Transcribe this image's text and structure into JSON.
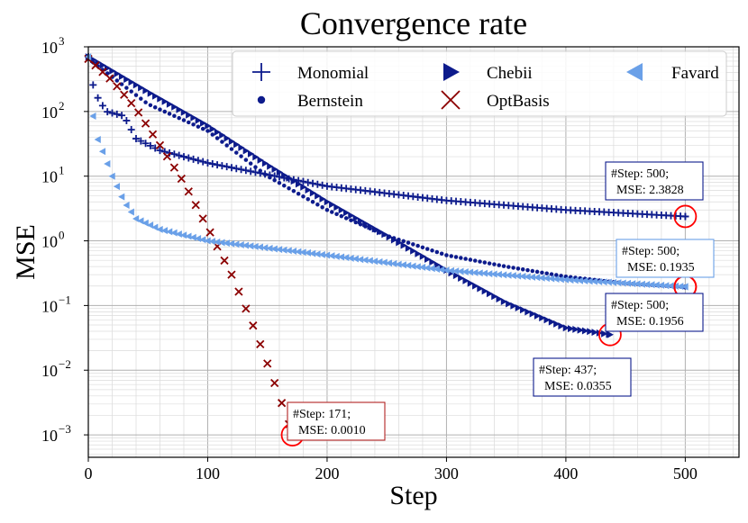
{
  "chart_data": {
    "type": "scatter",
    "title": "Convergence rate",
    "xlabel": "Step",
    "ylabel": "MSE",
    "xlim": [
      0,
      545
    ],
    "ylim": [
      0.00045,
      1000
    ],
    "yscale": "log",
    "grid": true,
    "legend_position": "top-right",
    "x_ticks": [
      0,
      100,
      200,
      300,
      400,
      500
    ],
    "y_ticks": [
      {
        "value": 0.001,
        "base": "10",
        "exp": "−3"
      },
      {
        "value": 0.01,
        "base": "10",
        "exp": "−2"
      },
      {
        "value": 0.1,
        "base": "10",
        "exp": "−1"
      },
      {
        "value": 1,
        "base": "10",
        "exp": "0"
      },
      {
        "value": 10,
        "base": "10",
        "exp": "1"
      },
      {
        "value": 100,
        "base": "10",
        "exp": "2"
      },
      {
        "value": 1000,
        "base": "10",
        "exp": "3"
      }
    ],
    "series": [
      {
        "name": "Monomial",
        "marker": "plus",
        "color": "#0d1b8c",
        "keypoints": [
          [
            0,
            700
          ],
          [
            5,
            200
          ],
          [
            15,
            100
          ],
          [
            30,
            85
          ],
          [
            40,
            38
          ],
          [
            60,
            25
          ],
          [
            100,
            16
          ],
          [
            200,
            7
          ],
          [
            300,
            4.2
          ],
          [
            400,
            3.0
          ],
          [
            500,
            2.3828
          ]
        ],
        "n": 500
      },
      {
        "name": "Bernstein",
        "marker": "circle",
        "color": "#0d1b8c",
        "keypoints": [
          [
            0,
            650
          ],
          [
            50,
            130
          ],
          [
            100,
            50
          ],
          [
            150,
            10
          ],
          [
            200,
            3.0
          ],
          [
            250,
            1.2
          ],
          [
            300,
            0.6
          ],
          [
            350,
            0.4
          ],
          [
            400,
            0.28
          ],
          [
            450,
            0.22
          ],
          [
            500,
            0.1935
          ]
        ],
        "n": 500
      },
      {
        "name": "Chebii",
        "marker": "triangle-right",
        "color": "#0d1b8c",
        "keypoints": [
          [
            0,
            700
          ],
          [
            50,
            200
          ],
          [
            100,
            60
          ],
          [
            150,
            15
          ],
          [
            200,
            4
          ],
          [
            250,
            1.2
          ],
          [
            300,
            0.35
          ],
          [
            350,
            0.11
          ],
          [
            400,
            0.045
          ],
          [
            437,
            0.0355
          ]
        ],
        "n": 437
      },
      {
        "name": "OptBasis",
        "marker": "x",
        "color": "#8b0000",
        "keypoints": [
          [
            0,
            650
          ],
          [
            20,
            300
          ],
          [
            40,
            110
          ],
          [
            60,
            30
          ],
          [
            80,
            8
          ],
          [
            100,
            1.6
          ],
          [
            120,
            0.3
          ],
          [
            140,
            0.04
          ],
          [
            160,
            0.004
          ],
          [
            171,
            0.001
          ]
        ],
        "n": 171
      },
      {
        "name": "Favard",
        "marker": "triangle-left",
        "color": "#6aa0e8",
        "keypoints": [
          [
            0,
            700
          ],
          [
            5,
            50
          ],
          [
            10,
            30
          ],
          [
            20,
            10
          ],
          [
            30,
            4
          ],
          [
            40,
            2.2
          ],
          [
            60,
            1.5
          ],
          [
            100,
            1.0
          ],
          [
            200,
            0.6
          ],
          [
            300,
            0.35
          ],
          [
            400,
            0.25
          ],
          [
            500,
            0.1956
          ]
        ],
        "n": 500
      }
    ],
    "annotations": [
      {
        "line1": "#Step: 500;",
        "line2": "MSE: 2.3828",
        "point": [
          500,
          2.3828
        ],
        "border": "#0d1b8c"
      },
      {
        "line1": "#Step: 500;",
        "line2": "MSE: 0.1935",
        "point": [
          500,
          0.1935
        ],
        "border": "#6aa0e8"
      },
      {
        "line1": "#Step: 500;",
        "line2": "MSE: 0.1956",
        "point": [
          500,
          0.1956
        ],
        "border": "#0d1b8c"
      },
      {
        "line1": "#Step: 437;",
        "line2": "MSE: 0.0355",
        "point": [
          437,
          0.0355
        ],
        "border": "#0d1b8c"
      },
      {
        "line1": "#Step: 171;",
        "line2": "MSE: 0.0010",
        "point": [
          171,
          0.001
        ],
        "border": "#b22222"
      }
    ],
    "highlight_color": "#ff0000"
  }
}
